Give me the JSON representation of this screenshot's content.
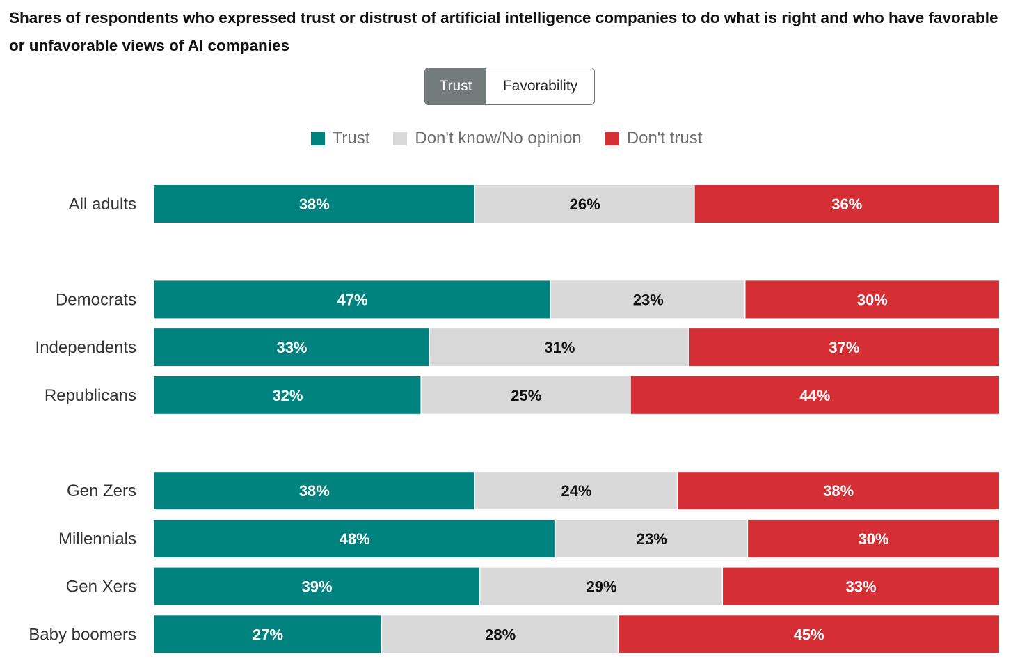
{
  "title": "Shares of respondents who expressed trust or distrust of artificial intelligence companies to do what is right and who have favorable or unfavorable views of AI companies",
  "toggle": {
    "options": [
      "Trust",
      "Favorability"
    ],
    "selected": "Trust"
  },
  "colors": {
    "trust": "#00827f",
    "dont_know": "#d8d9d8",
    "dont_trust": "#d62e35",
    "label_on_dark": "#ffffff",
    "label_on_light": "#111111"
  },
  "chart_data": {
    "type": "bar",
    "orientation": "horizontal",
    "stacked": true,
    "legend_position": "top-center",
    "grid": false,
    "xlim": [
      0,
      100
    ],
    "categories": [
      "All adults",
      "Democrats",
      "Independents",
      "Republicans",
      "Gen Zers",
      "Millennials",
      "Gen Xers",
      "Baby boomers"
    ],
    "groups": [
      [
        "All adults"
      ],
      [
        "Democrats",
        "Independents",
        "Republicans"
      ],
      [
        "Gen Zers",
        "Millennials",
        "Gen Xers",
        "Baby boomers"
      ]
    ],
    "series": [
      {
        "name": "Trust",
        "values": [
          38,
          47,
          33,
          32,
          38,
          48,
          39,
          27
        ]
      },
      {
        "name": "Don't know/No opinion",
        "values": [
          26,
          23,
          31,
          25,
          24,
          23,
          29,
          28
        ]
      },
      {
        "name": "Don't trust",
        "values": [
          36,
          30,
          37,
          44,
          38,
          30,
          33,
          45
        ]
      }
    ],
    "value_suffix": "%"
  }
}
